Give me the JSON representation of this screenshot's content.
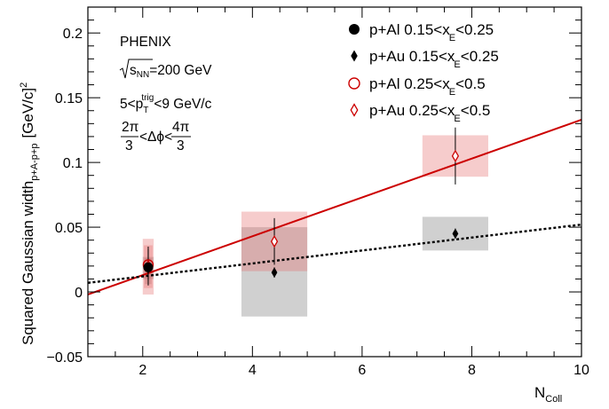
{
  "chart_data": {
    "type": "scatter",
    "xlabel_main": "N",
    "xlabel_sub": "Coll",
    "ylabel_main": "Squared Gaussian width",
    "ylabel_sub": "p+A-p+p",
    "ylabel_unit": "[GeV/c]",
    "ylabel_unit_sup": "2",
    "xlim": [
      1,
      10
    ],
    "ylim": [
      -0.05,
      0.22
    ],
    "x_ticks": [
      {
        "v": 2,
        "label": "2"
      },
      {
        "v": 4,
        "label": "4"
      },
      {
        "v": 6,
        "label": "6"
      },
      {
        "v": 8,
        "label": "8"
      },
      {
        "v": 10,
        "label": "10"
      }
    ],
    "y_ticks": [
      {
        "v": -0.05,
        "label": "−0.05"
      },
      {
        "v": 0,
        "label": "0"
      },
      {
        "v": 0.05,
        "label": "0.05"
      },
      {
        "v": 0.1,
        "label": "0.1"
      },
      {
        "v": 0.15,
        "label": "0.15"
      },
      {
        "v": 0.2,
        "label": "0.2"
      }
    ],
    "annotations": {
      "experiment": "PHENIX",
      "energy_s": "s",
      "energy_sub": "NN",
      "energy_rest": "=200 GeV",
      "pt_pre": "5<p",
      "pt_sub": "T",
      "pt_sup": "trig",
      "pt_post": "<9 GeV/c",
      "dphi_num1": "2π",
      "dphi_den1": "3",
      "dphi_mid": "<Δϕ<",
      "dphi_num2": "4π",
      "dphi_den2": "3"
    },
    "series": [
      {
        "legend_pre": "p+Al 0.15<x",
        "legend_sub": "E",
        "legend_post": "<0.25",
        "marker": "filled-circle",
        "color": "#000000",
        "points": [
          {
            "x": 2.1,
            "y": 0.019,
            "yerr": 0.006,
            "sys_lo": 0.006,
            "sys_hi": 0.026,
            "sys_xw": 0.06
          }
        ]
      },
      {
        "legend_pre": "p+Au 0.15<x",
        "legend_sub": "E",
        "legend_post": "<0.25",
        "marker": "filled-diamond",
        "color": "#000000",
        "points": [
          {
            "x": 2.1,
            "y": 0.018,
            "yerr": 0.004,
            "sys_lo": 0.01,
            "sys_hi": 0.027,
            "sys_xw": 0.1
          },
          {
            "x": 4.4,
            "y": 0.015,
            "yerr": 0.004,
            "sys_lo": -0.019,
            "sys_hi": 0.05,
            "sys_xw": 0.6
          },
          {
            "x": 7.7,
            "y": 0.045,
            "yerr": 0.004,
            "sys_lo": 0.032,
            "sys_hi": 0.058,
            "sys_xw": 0.6
          }
        ]
      },
      {
        "legend_pre": "p+Al 0.25<x",
        "legend_sub": "E",
        "legend_post": "<0.5",
        "marker": "open-circle",
        "color": "#cc0000",
        "points": [
          {
            "x": 2.1,
            "y": 0.021,
            "yerr": 0.012,
            "sys_lo": 0.003,
            "sys_hi": 0.036,
            "sys_xw": 0.08
          }
        ]
      },
      {
        "legend_pre": "p+Au 0.25<x",
        "legend_sub": "E",
        "legend_post": "<0.5",
        "marker": "open-diamond",
        "color": "#cc0000",
        "points": [
          {
            "x": 2.1,
            "y": 0.02,
            "yerr": 0.015,
            "sys_lo": -0.002,
            "sys_hi": 0.041,
            "sys_xw": 0.1
          },
          {
            "x": 4.4,
            "y": 0.039,
            "yerr": 0.018,
            "sys_lo": 0.016,
            "sys_hi": 0.062,
            "sys_xw": 0.6
          },
          {
            "x": 7.7,
            "y": 0.105,
            "yerr": 0.022,
            "sys_lo": 0.089,
            "sys_hi": 0.121,
            "sys_xw": 0.6
          }
        ]
      }
    ],
    "fits": [
      {
        "kind": "solid",
        "color": "#cc0000",
        "x": [
          1,
          10
        ],
        "y": [
          -0.002,
          0.133
        ]
      },
      {
        "kind": "dotted",
        "color": "#000000",
        "x": [
          1,
          10
        ],
        "y": [
          0.007,
          0.052
        ]
      }
    ]
  }
}
